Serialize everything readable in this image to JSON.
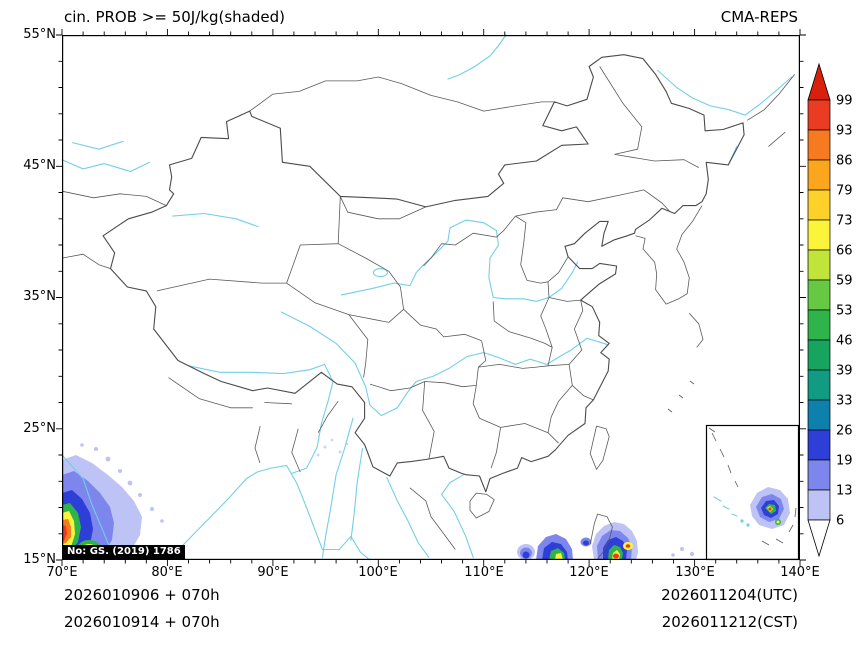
{
  "header": {
    "title": "cin. PROB >= 50J/kg(shaded)",
    "source": "CMA-REPS"
  },
  "axes": {
    "y_labels": [
      "55°N",
      "45°N",
      "35°N",
      "25°N",
      "15°N"
    ],
    "x_labels": [
      "70°E",
      "80°E",
      "90°E",
      "100°E",
      "110°E",
      "120°E",
      "130°E",
      "140°E"
    ]
  },
  "colorbar": {
    "values": [
      "99",
      "93",
      "86",
      "79",
      "73",
      "66",
      "59",
      "53",
      "46",
      "39",
      "33",
      "26",
      "19",
      "13",
      "6"
    ],
    "arrow_top": "#d8200d",
    "bands": [
      "#e93c22",
      "#f57a20",
      "#fba61d",
      "#fdd02a",
      "#fcf43b",
      "#c0e43a",
      "#67c843",
      "#2fb44b",
      "#17a45f",
      "#109b82",
      "#0d80ab",
      "#2e3fd8",
      "#7d86ec",
      "#bdc3f4"
    ],
    "arrow_bottom": "#ffffff"
  },
  "map": {
    "watermark": "No: GS. (2019) 1786"
  },
  "footer": {
    "left_line1": "2026010906 + 070h",
    "left_line2": "2026010914 + 070h",
    "right_line1": "2026011204(UTC)",
    "right_line2": "2026011212(CST)"
  }
}
